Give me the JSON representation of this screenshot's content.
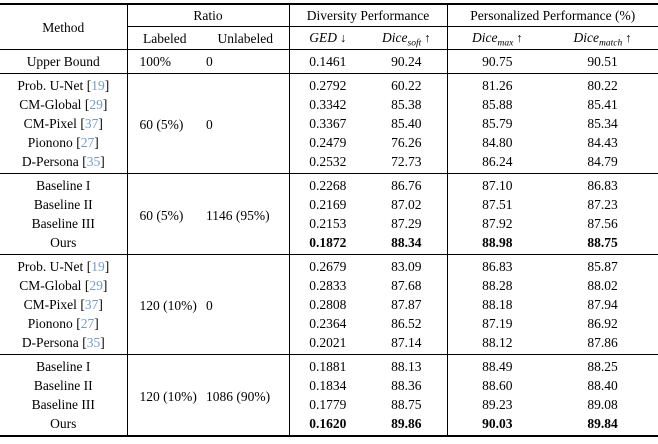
{
  "colors": {
    "citation": "#6f9dca",
    "rule": "#000000",
    "background": "#ffffff"
  },
  "table": {
    "header": {
      "method": "Method",
      "ratio": "Ratio",
      "labeled": "Labeled",
      "unlabeled": "Unlabeled",
      "diversity": "Diversity Performance",
      "personalized": "Personalized Performance (%)",
      "metrics": [
        {
          "name": "GED",
          "sub": "",
          "arrow": "↓"
        },
        {
          "name": "Dice",
          "sub": "soft",
          "arrow": "↑"
        },
        {
          "name": "Dice",
          "sub": "max",
          "arrow": "↑"
        },
        {
          "name": "Dice",
          "sub": "match",
          "arrow": "↑"
        }
      ]
    },
    "blocks": [
      {
        "labeled": "100%",
        "unlabeled": "0",
        "rows": [
          {
            "method": "Upper Bound",
            "values": [
              "0.1461",
              "90.24",
              "90.75",
              "90.51"
            ],
            "bold": false
          }
        ]
      },
      {
        "labeled": "60 (5%)",
        "unlabeled": "0",
        "rows": [
          {
            "method": "Prob. U-Net",
            "cite": "19",
            "values": [
              "0.2792",
              "60.22",
              "81.26",
              "80.22"
            ],
            "bold": false
          },
          {
            "method": "CM-Global",
            "cite": "29",
            "values": [
              "0.3342",
              "85.38",
              "85.88",
              "85.41"
            ],
            "bold": false
          },
          {
            "method": "CM-Pixel",
            "cite": "37",
            "values": [
              "0.3367",
              "85.40",
              "85.79",
              "85.34"
            ],
            "bold": false
          },
          {
            "method": "Pionono",
            "cite": "27",
            "values": [
              "0.2479",
              "76.26",
              "84.80",
              "84.43"
            ],
            "bold": false
          },
          {
            "method": "D-Persona",
            "cite": "35",
            "values": [
              "0.2532",
              "72.73",
              "86.24",
              "84.79"
            ],
            "bold": false
          }
        ]
      },
      {
        "labeled": "60 (5%)",
        "unlabeled": "1146 (95%)",
        "rows": [
          {
            "method": "Baseline I",
            "values": [
              "0.2268",
              "86.76",
              "87.10",
              "86.83"
            ],
            "bold": false
          },
          {
            "method": "Baseline II",
            "values": [
              "0.2169",
              "87.02",
              "87.51",
              "87.23"
            ],
            "bold": false
          },
          {
            "method": "Baseline III",
            "values": [
              "0.2153",
              "87.29",
              "87.92",
              "87.56"
            ],
            "bold": false
          },
          {
            "method": "Ours",
            "values": [
              "0.1872",
              "88.34",
              "88.98",
              "88.75"
            ],
            "bold": true
          }
        ]
      },
      {
        "labeled": "120 (10%)",
        "unlabeled": "0",
        "rows": [
          {
            "method": "Prob. U-Net",
            "cite": "19",
            "values": [
              "0.2679",
              "83.09",
              "86.83",
              "85.87"
            ],
            "bold": false
          },
          {
            "method": "CM-Global",
            "cite": "29",
            "values": [
              "0.2833",
              "87.68",
              "88.28",
              "88.02"
            ],
            "bold": false
          },
          {
            "method": "CM-Pixel",
            "cite": "37",
            "values": [
              "0.2808",
              "87.87",
              "88.18",
              "87.94"
            ],
            "bold": false
          },
          {
            "method": "Pionono",
            "cite": "27",
            "values": [
              "0.2364",
              "86.52",
              "87.19",
              "86.92"
            ],
            "bold": false
          },
          {
            "method": "D-Persona",
            "cite": "35",
            "values": [
              "0.2021",
              "87.14",
              "88.12",
              "87.86"
            ],
            "bold": false
          }
        ]
      },
      {
        "labeled": "120 (10%)",
        "unlabeled": "1086 (90%)",
        "rows": [
          {
            "method": "Baseline I",
            "values": [
              "0.1881",
              "88.13",
              "88.49",
              "88.25"
            ],
            "bold": false
          },
          {
            "method": "Baseline II",
            "values": [
              "0.1834",
              "88.36",
              "88.60",
              "88.40"
            ],
            "bold": false
          },
          {
            "method": "Baseline III",
            "values": [
              "0.1779",
              "88.75",
              "89.23",
              "89.08"
            ],
            "bold": false
          },
          {
            "method": "Ours",
            "values": [
              "0.1620",
              "89.86",
              "90.03",
              "89.84"
            ],
            "bold": true
          }
        ]
      }
    ]
  }
}
